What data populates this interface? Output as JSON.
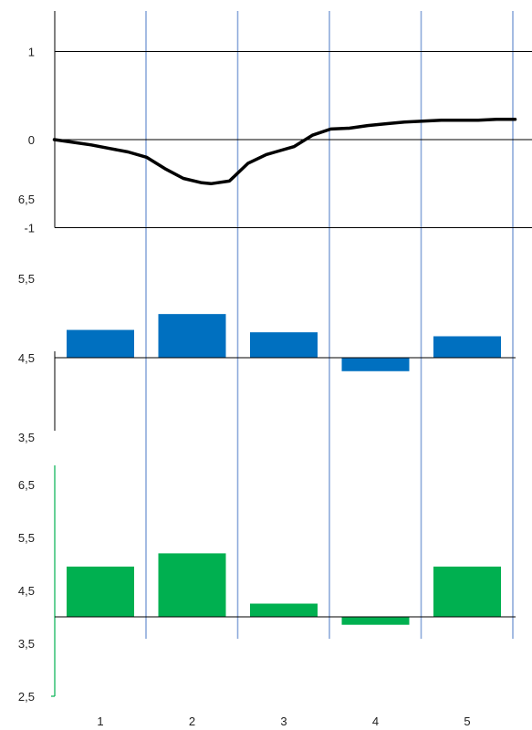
{
  "chart_data": [
    {
      "type": "line",
      "x": [
        0.5,
        0.7,
        0.9,
        1.1,
        1.3,
        1.5,
        1.7,
        1.9,
        2.1,
        2.2,
        2.4,
        2.6,
        2.8,
        2.9,
        3.1,
        3.3,
        3.5,
        3.7,
        3.9,
        4.1,
        4.3,
        4.5,
        4.7,
        4.9,
        5.1,
        5.3,
        5.5
      ],
      "series": [
        {
          "values": [
            0,
            -0.03,
            -0.06,
            -0.1,
            -0.14,
            -0.2,
            -0.33,
            -0.44,
            -0.49,
            -0.5,
            -0.47,
            -0.27,
            -0.17,
            -0.14,
            -0.08,
            0.05,
            0.12,
            0.13,
            0.16,
            0.18,
            0.2,
            0.21,
            0.22,
            0.22,
            0.22,
            0.23,
            0.23
          ],
          "color": "#000000"
        }
      ],
      "yticks": [
        1,
        0,
        -1
      ],
      "yticklabels": [
        "1",
        "0",
        "-1"
      ],
      "ylim": [
        -1,
        1
      ],
      "grid": true
    },
    {
      "type": "bar",
      "categories": [
        "1",
        "2",
        "3",
        "4",
        "5"
      ],
      "values": [
        4.85,
        5.05,
        4.82,
        4.33,
        4.77
      ],
      "baseline": 4.5,
      "color": "#0070C0",
      "yticks": [
        6.5,
        5.5,
        4.5,
        3.5
      ],
      "yticklabels": [
        "6,5",
        "5,5",
        "4,5",
        "3,5"
      ],
      "ylim": [
        3.5,
        6.5
      ]
    },
    {
      "type": "bar",
      "categories": [
        "1",
        "2",
        "3",
        "4",
        "5"
      ],
      "values": [
        4.95,
        5.2,
        4.25,
        3.85,
        4.95
      ],
      "baseline": 4.0,
      "color": "#00B050",
      "yticks": [
        6.5,
        5.5,
        4.5,
        3.5,
        2.5
      ],
      "yticklabels": [
        "6,5",
        "5,5",
        "4,5",
        "3,5",
        "2,5"
      ],
      "ylim": [
        2.5,
        6.9
      ],
      "xticklabels": [
        "1",
        "2",
        "3",
        "4",
        "5"
      ]
    }
  ]
}
